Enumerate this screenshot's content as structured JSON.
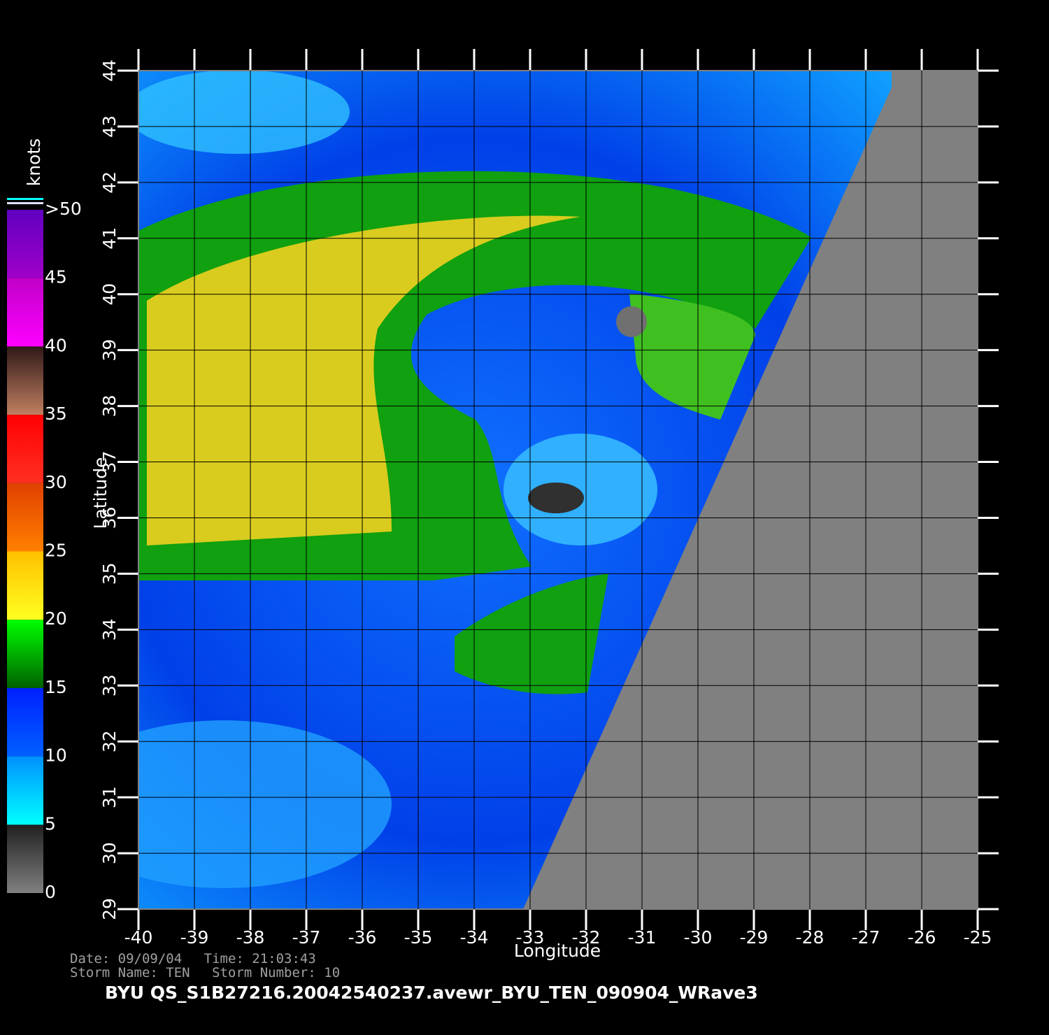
{
  "map": {
    "xlabel": "Longitude",
    "ylabel": "Latitude",
    "xlim": [
      -40,
      -25
    ],
    "ylim": [
      29,
      44
    ],
    "xticks": [
      -40,
      -39,
      -38,
      -37,
      -36,
      -35,
      -34,
      -33,
      -32,
      -31,
      -30,
      -29,
      -28,
      -27,
      -26,
      -25
    ],
    "yticks": [
      29,
      30,
      31,
      32,
      33,
      34,
      35,
      36,
      37,
      38,
      39,
      40,
      41,
      42,
      43,
      44
    ],
    "grid": true
  },
  "colorbar": {
    "title": "knots",
    "ticks": [
      0,
      5,
      10,
      15,
      20,
      25,
      30,
      35,
      40,
      45,
      {
        "value": 50,
        "label": ">50"
      }
    ],
    "colors": [
      [
        "#808080",
        "#202020"
      ],
      [
        "#00ffff",
        "#0090ff"
      ],
      [
        "#0060ff",
        "#0020ff"
      ],
      [
        "#006000",
        "#00ff00"
      ],
      [
        "#ffff20",
        "#ffc000"
      ],
      [
        "#ff8000",
        "#e04000"
      ],
      [
        "#ff3020",
        "#ff0000"
      ],
      [
        "#c08060",
        "#301818"
      ],
      [
        "#ff00ff",
        "#c000c8"
      ],
      [
        "#a000c8",
        "#6000c0"
      ]
    ]
  },
  "info": {
    "date_label": "Date:",
    "date": "09/09/04",
    "time_label": "Time:",
    "time": "21:03:43",
    "storm_name_label": "Storm Name:",
    "storm_name": "TEN",
    "storm_number_label": "Storm Number:",
    "storm_number": 10
  },
  "title": "BYU  QS_S1B27216.20042540237.avewr_BYU_TEN_090904_WRave3"
}
